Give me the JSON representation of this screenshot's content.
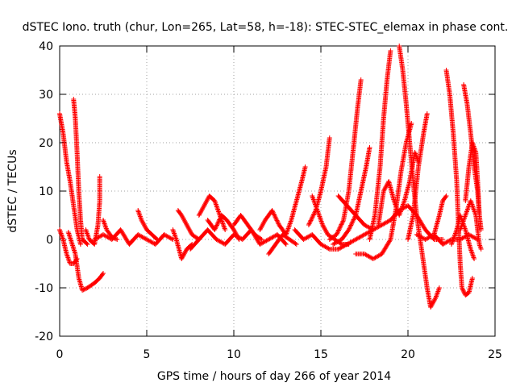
{
  "chart_data": {
    "type": "scatter",
    "title": "dSTEC Iono. truth (chur, Lon=265, Lat=58, h=-18): STEC-STEC_elemax in phase cont.",
    "xlabel": "GPS time / hours of day 266 of year 2014",
    "ylabel": "dSTEC  / TECUs",
    "xlim": [
      0,
      25
    ],
    "ylim": [
      -20,
      40
    ],
    "xticks": [
      "0",
      "5",
      "10",
      "15",
      "20",
      "25"
    ],
    "yticks": [
      "-20",
      "-10",
      "0",
      "10",
      "20",
      "30",
      "40"
    ],
    "grid": true,
    "legend": "none",
    "marker": "+",
    "color": "#ff0000",
    "arcs": [
      [
        [
          0,
          26
        ],
        [
          0.2,
          22
        ],
        [
          0.4,
          16
        ],
        [
          0.6,
          12
        ],
        [
          0.8,
          7
        ],
        [
          1.0,
          2
        ],
        [
          1.2,
          -1
        ]
      ],
      [
        [
          0,
          2
        ],
        [
          0.2,
          0
        ],
        [
          0.4,
          -3
        ],
        [
          0.6,
          -5
        ],
        [
          0.8,
          -5
        ],
        [
          1.0,
          -4
        ]
      ],
      [
        [
          0.5,
          1.5
        ],
        [
          0.9,
          -3
        ],
        [
          1.1,
          -8
        ],
        [
          1.3,
          -10.5
        ],
        [
          1.6,
          -10
        ],
        [
          2.0,
          -9
        ],
        [
          2.3,
          -8
        ],
        [
          2.5,
          -7
        ]
      ],
      [
        [
          0.8,
          29
        ],
        [
          0.9,
          25
        ],
        [
          1.0,
          18
        ],
        [
          1.1,
          10
        ],
        [
          1.2,
          4
        ],
        [
          1.3,
          0
        ],
        [
          1.6,
          -1
        ]
      ],
      [
        [
          1.5,
          2
        ],
        [
          1.7,
          0
        ],
        [
          2.0,
          -1
        ],
        [
          2.2,
          3
        ],
        [
          2.3,
          8
        ],
        [
          2.3,
          13
        ]
      ],
      [
        [
          2.0,
          0
        ],
        [
          2.5,
          1
        ],
        [
          3.0,
          0
        ],
        [
          3.5,
          2
        ],
        [
          4.0,
          -1
        ],
        [
          4.5,
          1
        ],
        [
          5.0,
          0
        ],
        [
          5.5,
          -1
        ],
        [
          6.0,
          1
        ],
        [
          6.5,
          0
        ]
      ],
      [
        [
          2.5,
          4
        ],
        [
          2.7,
          2
        ],
        [
          3.0,
          0.5
        ],
        [
          3.3,
          0
        ]
      ],
      [
        [
          4.5,
          6
        ],
        [
          4.7,
          4
        ],
        [
          5.0,
          2
        ],
        [
          5.3,
          1
        ],
        [
          5.6,
          0
        ]
      ],
      [
        [
          6.5,
          2
        ],
        [
          6.7,
          0
        ],
        [
          7.0,
          -4
        ],
        [
          7.3,
          -2
        ],
        [
          7.6,
          -1
        ]
      ],
      [
        [
          6.8,
          6
        ],
        [
          7.0,
          5
        ],
        [
          7.3,
          3
        ],
        [
          7.6,
          1
        ],
        [
          8.0,
          0
        ]
      ],
      [
        [
          7.5,
          -2
        ],
        [
          8.0,
          0
        ],
        [
          8.5,
          2
        ],
        [
          9.0,
          0
        ],
        [
          9.5,
          -1
        ],
        [
          10.0,
          1
        ],
        [
          10.5,
          0
        ],
        [
          11.0,
          2
        ],
        [
          11.5,
          -1
        ],
        [
          12.0,
          0
        ],
        [
          12.5,
          1
        ],
        [
          13.0,
          -1
        ]
      ],
      [
        [
          8.0,
          5
        ],
        [
          8.3,
          7
        ],
        [
          8.6,
          9
        ],
        [
          8.9,
          8
        ],
        [
          9.2,
          5
        ],
        [
          9.5,
          2
        ]
      ],
      [
        [
          8.5,
          4
        ],
        [
          8.9,
          2
        ],
        [
          9.3,
          5
        ],
        [
          9.6,
          4
        ],
        [
          10.0,
          2
        ],
        [
          10.3,
          0
        ]
      ],
      [
        [
          10.0,
          3
        ],
        [
          10.4,
          5
        ],
        [
          10.8,
          3
        ],
        [
          11.2,
          1
        ],
        [
          11.6,
          0
        ]
      ],
      [
        [
          11.5,
          2
        ],
        [
          11.8,
          4
        ],
        [
          12.2,
          6
        ],
        [
          12.6,
          3
        ],
        [
          13.0,
          1
        ]
      ],
      [
        [
          12.0,
          -3
        ],
        [
          12.4,
          -1
        ],
        [
          12.8,
          1
        ],
        [
          13.2,
          0
        ],
        [
          13.6,
          -1
        ]
      ],
      [
        [
          13.0,
          1
        ],
        [
          13.3,
          4
        ],
        [
          13.6,
          8
        ],
        [
          13.9,
          12
        ],
        [
          14.1,
          15
        ]
      ],
      [
        [
          13.5,
          2
        ],
        [
          14.0,
          0
        ],
        [
          14.5,
          1
        ],
        [
          15.0,
          -1
        ],
        [
          15.5,
          -2
        ],
        [
          16.0,
          -2
        ],
        [
          16.5,
          -1
        ],
        [
          17.0,
          0
        ],
        [
          17.5,
          1
        ],
        [
          18.0,
          2
        ]
      ],
      [
        [
          14.5,
          9
        ],
        [
          14.8,
          6
        ],
        [
          15.1,
          3
        ],
        [
          15.4,
          1
        ],
        [
          15.8,
          0
        ],
        [
          16.2,
          -1
        ],
        [
          16.6,
          -1
        ]
      ],
      [
        [
          14.3,
          3
        ],
        [
          14.7,
          6
        ],
        [
          15.0,
          10
        ],
        [
          15.3,
          15
        ],
        [
          15.5,
          21
        ]
      ],
      [
        [
          15.5,
          0
        ],
        [
          15.9,
          1
        ],
        [
          16.3,
          4
        ],
        [
          16.6,
          10
        ],
        [
          16.9,
          20
        ],
        [
          17.1,
          27
        ],
        [
          17.3,
          33
        ]
      ],
      [
        [
          15.7,
          -1
        ],
        [
          16.2,
          0
        ],
        [
          16.6,
          2
        ],
        [
          17.0,
          5
        ],
        [
          17.3,
          10
        ],
        [
          17.6,
          15
        ],
        [
          17.8,
          19
        ]
      ],
      [
        [
          16.0,
          9
        ],
        [
          16.5,
          7
        ],
        [
          17.0,
          5
        ],
        [
          17.5,
          3
        ],
        [
          18.0,
          2
        ],
        [
          18.5,
          3
        ],
        [
          19.0,
          4
        ]
      ],
      [
        [
          17.0,
          -3
        ],
        [
          17.5,
          -3
        ],
        [
          18.0,
          -4
        ],
        [
          18.5,
          -3
        ],
        [
          19.0,
          0
        ],
        [
          19.3,
          6
        ],
        [
          19.6,
          14
        ],
        [
          19.9,
          20
        ],
        [
          20.2,
          24
        ]
      ],
      [
        [
          17.8,
          0
        ],
        [
          18.1,
          5
        ],
        [
          18.4,
          15
        ],
        [
          18.6,
          25
        ],
        [
          18.8,
          33
        ],
        [
          19.0,
          39
        ]
      ],
      [
        [
          18.3,
          3
        ],
        [
          18.6,
          10
        ],
        [
          18.9,
          12
        ],
        [
          19.2,
          8
        ],
        [
          19.5,
          5
        ],
        [
          19.8,
          8
        ],
        [
          20.1,
          12
        ],
        [
          20.4,
          18
        ],
        [
          20.6,
          16
        ]
      ],
      [
        [
          19.5,
          40
        ],
        [
          19.7,
          35
        ],
        [
          19.9,
          28
        ],
        [
          20.1,
          20
        ],
        [
          20.3,
          12
        ],
        [
          20.5,
          5
        ],
        [
          20.7,
          0
        ],
        [
          20.9,
          -5
        ],
        [
          21.1,
          -10
        ],
        [
          21.3,
          -14
        ],
        [
          21.6,
          -12
        ],
        [
          21.8,
          -10
        ]
      ],
      [
        [
          19.0,
          4
        ],
        [
          19.5,
          6
        ],
        [
          20.0,
          7
        ],
        [
          20.5,
          5
        ],
        [
          21.0,
          2
        ],
        [
          21.5,
          0
        ],
        [
          22.0,
          0
        ]
      ],
      [
        [
          20.0,
          0
        ],
        [
          20.3,
          5
        ],
        [
          20.6,
          15
        ],
        [
          20.9,
          22
        ],
        [
          21.1,
          26
        ]
      ],
      [
        [
          20.5,
          1
        ],
        [
          21.0,
          0
        ],
        [
          21.5,
          1
        ],
        [
          22.0,
          -1
        ],
        [
          22.5,
          0
        ],
        [
          23.0,
          0
        ],
        [
          23.5,
          1
        ],
        [
          24.0,
          0
        ]
      ],
      [
        [
          21.5,
          1
        ],
        [
          21.8,
          5
        ],
        [
          22.0,
          8
        ],
        [
          22.2,
          9
        ]
      ],
      [
        [
          22.2,
          35
        ],
        [
          22.4,
          30
        ],
        [
          22.6,
          22
        ],
        [
          22.8,
          12
        ],
        [
          22.9,
          3
        ],
        [
          23.0,
          -5
        ],
        [
          23.1,
          -10
        ],
        [
          23.3,
          -11.5
        ],
        [
          23.5,
          -11
        ],
        [
          23.7,
          -8
        ]
      ],
      [
        [
          22.5,
          -1
        ],
        [
          22.8,
          2
        ],
        [
          23.0,
          5
        ],
        [
          23.3,
          2
        ],
        [
          23.6,
          -2
        ],
        [
          23.8,
          -4
        ]
      ],
      [
        [
          23.2,
          32
        ],
        [
          23.4,
          28
        ],
        [
          23.6,
          22
        ],
        [
          23.8,
          15
        ],
        [
          24.0,
          10
        ],
        [
          24.1,
          5
        ]
      ],
      [
        [
          23.3,
          8
        ],
        [
          23.5,
          15
        ],
        [
          23.7,
          20
        ],
        [
          23.9,
          18
        ],
        [
          24.0,
          12
        ],
        [
          24.1,
          5
        ],
        [
          24.2,
          2
        ]
      ],
      [
        [
          23.0,
          2
        ],
        [
          23.3,
          5
        ],
        [
          23.6,
          8
        ],
        [
          23.9,
          5
        ],
        [
          24.1,
          -1
        ],
        [
          24.2,
          -2
        ]
      ]
    ]
  }
}
